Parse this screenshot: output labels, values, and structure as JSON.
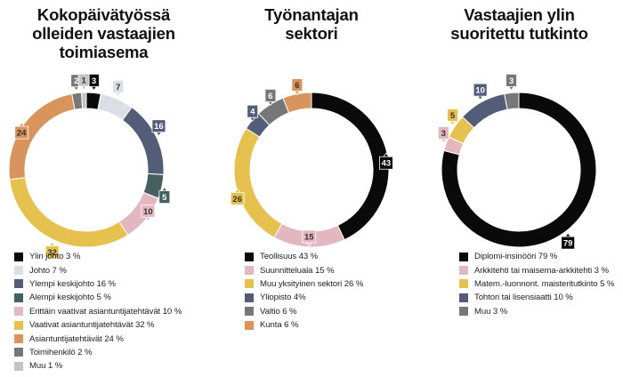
{
  "chart_data": [
    {
      "type": "pie",
      "title": "Kokopäivätyössä\nolleiden vastaajien\ntoimiasema",
      "slices": [
        {
          "label": "Ylin johto 3 %",
          "value": 3,
          "value_label": "3",
          "color": "#0a0a0a"
        },
        {
          "label": "Johto 7 %",
          "value": 7,
          "value_label": "7",
          "color": "#dcdee5"
        },
        {
          "label": "Ylempi keskijohto 16 %",
          "value": 16,
          "value_label": "16",
          "color": "#535d78"
        },
        {
          "label": "Alempi keskijohto 5 %",
          "value": 5,
          "value_label": "5",
          "color": "#45605f"
        },
        {
          "label": "Erittäin vaativat asiantuntijatehtävät 10 %",
          "value": 10,
          "value_label": "10",
          "color": "#e2b7bf"
        },
        {
          "label": "Vaativat asiantuntijatehtävät 32 %",
          "value": 32,
          "value_label": "32",
          "color": "#e6c14f"
        },
        {
          "label": "Asiantuntijatehtävät 24 %",
          "value": 24,
          "value_label": "24",
          "color": "#d9935c"
        },
        {
          "label": "Toimihenkilö 2 %",
          "value": 2,
          "value_label": "2",
          "color": "#777777"
        },
        {
          "label": "Muu 1 %",
          "value": 1,
          "value_label": "1",
          "color": "#c4c4c4"
        }
      ]
    },
    {
      "type": "pie",
      "title": "Työnantajan\nsektori",
      "slices": [
        {
          "label": "Teollisuus 43 %",
          "value": 43,
          "value_label": "43",
          "color": "#0a0a0a"
        },
        {
          "label": "Suunnitteluala 15 %",
          "value": 15,
          "value_label": "15",
          "color": "#e2b7bf"
        },
        {
          "label": "Muu yksityinen sektori 26 %",
          "value": 26,
          "value_label": "26",
          "color": "#e6c14f"
        },
        {
          "label": "Yliopisto 4%",
          "value": 4,
          "value_label": "4",
          "color": "#535d78"
        },
        {
          "label": "Valtio 6 %",
          "value": 6,
          "value_label": "6",
          "color": "#777777"
        },
        {
          "label": "Kunta 6 %",
          "value": 6,
          "value_label": "6",
          "color": "#d9935c"
        }
      ]
    },
    {
      "type": "pie",
      "title": "Vastaajien ylin\nsuoritettu tutkinto",
      "slices": [
        {
          "label": "Diplomi-insinööri 79 %",
          "value": 79,
          "value_label": "79",
          "color": "#0a0a0a"
        },
        {
          "label": "Arkkitehti tai maisema-arkkitehti 3 %",
          "value": 3,
          "value_label": "3",
          "color": "#e2b7bf"
        },
        {
          "label": "Matem.-luonnont. maisteritutkinto 5 %",
          "value": 5,
          "value_label": "5",
          "color": "#e6c14f"
        },
        {
          "label": "Tohtori tai lisensiaatti 10 %",
          "value": 10,
          "value_label": "10",
          "color": "#535d78"
        },
        {
          "label": "Muu 3 %",
          "value": 3,
          "value_label": "3",
          "color": "#777777"
        }
      ]
    }
  ]
}
